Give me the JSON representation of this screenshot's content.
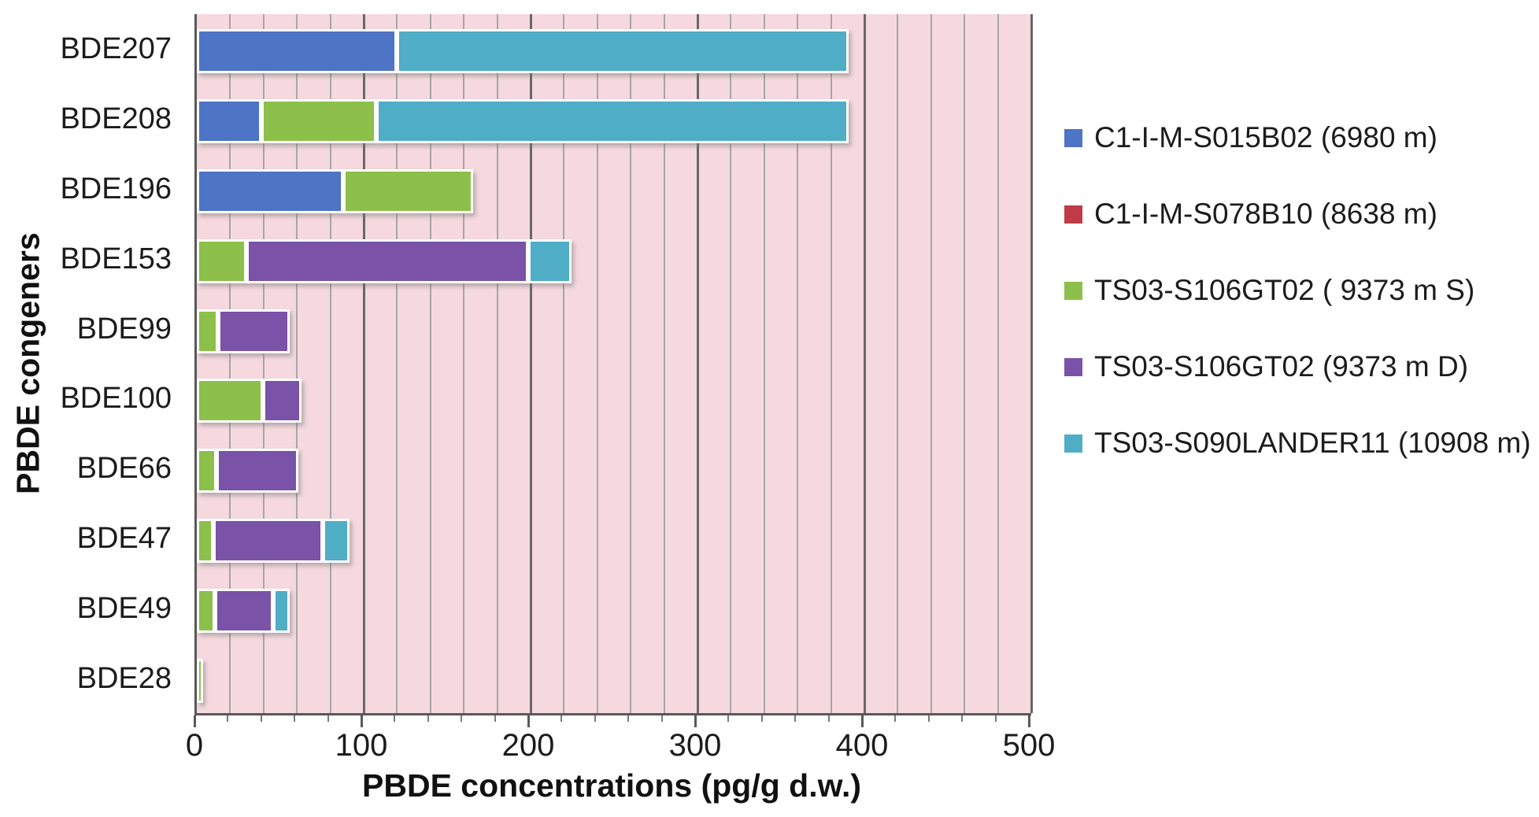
{
  "chart_data": {
    "type": "bar",
    "orientation": "horizontal",
    "stacked": true,
    "title": "",
    "xlabel": "PBDE concentrations (pg/g d.w.)",
    "ylabel": "PBDE congeners",
    "xlim": [
      0,
      500
    ],
    "xticks": [
      0,
      100,
      200,
      300,
      400,
      500
    ],
    "minor_gridline_step": 20,
    "grid": "vertical",
    "legend_position": "right",
    "categories": [
      "BDE207",
      "BDE208",
      "BDE196",
      "BDE153",
      "BDE99",
      "BDE100",
      "BDE66",
      "BDE47",
      "BDE49",
      "BDE28"
    ],
    "series": [
      {
        "name": "C1-I-M-S015B02 (6980 m)",
        "color": "#4d74c5",
        "values": [
          117,
          36,
          85,
          0,
          0,
          0,
          0,
          0,
          0,
          0
        ]
      },
      {
        "name": "C1-I-M-S078B10 (8638 m)",
        "color": "#bf3b47",
        "values": [
          0,
          0,
          0,
          0,
          0,
          0,
          0,
          0,
          0,
          0
        ]
      },
      {
        "name": "TS03-S106GT02 ( 9373 m S)",
        "color": "#8cc04b",
        "values": [
          0,
          66,
          75,
          27,
          10,
          37,
          9,
          7,
          8,
          1
        ]
      },
      {
        "name": "TS03-S106GT02 (9373 m D)",
        "color": "#7a52a8",
        "values": [
          0,
          0,
          0,
          166,
          40,
          20,
          46,
          63,
          32,
          0
        ]
      },
      {
        "name": "TS03-S090LANDER11 (10908 m)",
        "color": "#50adc6",
        "values": [
          268,
          280,
          0,
          23,
          0,
          0,
          0,
          13,
          7,
          0
        ]
      }
    ]
  },
  "colors": {
    "page_background": "#ffffff",
    "plot_background": "#f5d9de",
    "minor_gridline": "#a6a6a6",
    "major_gridline": "#686868",
    "axis_line": "#595959",
    "bar_border": "#ffffff",
    "text": "#1c1c1c"
  }
}
